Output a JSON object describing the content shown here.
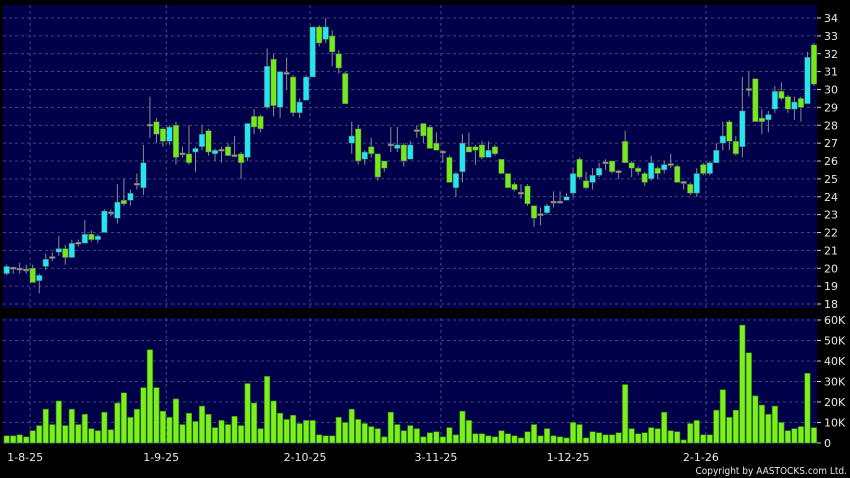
{
  "chart_data": [
    {
      "type": "candlestick",
      "panel": "price",
      "ylim": [
        18,
        34
      ],
      "yticks": [
        18,
        19,
        20,
        21,
        22,
        23,
        24,
        25,
        26,
        27,
        28,
        29,
        30,
        31,
        32,
        33,
        34
      ],
      "grid": true,
      "colors": {
        "up": "#22e6f2",
        "down": "#72ea1c",
        "flat": "#9a9a9a",
        "wick": "#8c8c8c",
        "background": "#00004a",
        "grid": "#5a5a8a"
      },
      "ohlc": [
        [
          19.7,
          20.2,
          19.6,
          20.1
        ],
        [
          20.0,
          20.1,
          19.7,
          20.0
        ],
        [
          19.95,
          20.3,
          19.7,
          19.95
        ],
        [
          19.9,
          20.2,
          19.7,
          19.9
        ],
        [
          20.0,
          20.2,
          19.2,
          19.2
        ],
        [
          19.3,
          19.7,
          18.6,
          19.6
        ],
        [
          20.1,
          20.8,
          19.9,
          20.5
        ],
        [
          20.6,
          20.9,
          20.4,
          20.6
        ],
        [
          20.9,
          21.8,
          20.7,
          21.1
        ],
        [
          21.1,
          21.3,
          20.2,
          20.6
        ],
        [
          20.6,
          21.6,
          20.6,
          21.4
        ],
        [
          21.4,
          21.6,
          21.2,
          21.4
        ],
        [
          21.4,
          22.7,
          21.4,
          21.9
        ],
        [
          21.9,
          22.1,
          21.5,
          21.6
        ],
        [
          21.6,
          21.9,
          21.4,
          21.8
        ],
        [
          22.0,
          23.3,
          22.0,
          23.2
        ],
        [
          23.1,
          23.3,
          22.9,
          23.1
        ],
        [
          22.8,
          24.7,
          22.5,
          23.7
        ],
        [
          23.8,
          25.0,
          23.5,
          23.6
        ],
        [
          23.8,
          24.4,
          23.5,
          24.2
        ],
        [
          24.7,
          25.3,
          24.4,
          24.7
        ],
        [
          24.5,
          26.9,
          24.1,
          25.9
        ],
        [
          28.0,
          29.6,
          27.3,
          28.0
        ],
        [
          28.2,
          28.4,
          27.0,
          27.5
        ],
        [
          27.8,
          27.9,
          26.8,
          27.1
        ],
        [
          27.1,
          28.0,
          26.9,
          27.9
        ],
        [
          28.0,
          28.2,
          25.8,
          26.2
        ],
        [
          26.4,
          26.8,
          26.2,
          26.4
        ],
        [
          26.4,
          28.0,
          25.8,
          25.9
        ],
        [
          26.5,
          26.8,
          25.4,
          26.7
        ],
        [
          26.8,
          28.0,
          26.6,
          27.5
        ],
        [
          27.7,
          27.8,
          26.3,
          26.5
        ],
        [
          26.4,
          26.7,
          26.0,
          26.6
        ],
        [
          26.6,
          26.8,
          25.9,
          26.6
        ],
        [
          26.8,
          27.0,
          26.3,
          26.3
        ],
        [
          26.3,
          27.4,
          26.2,
          26.3
        ],
        [
          26.4,
          26.5,
          25.0,
          25.9
        ],
        [
          26.2,
          28.1,
          26.0,
          28.1
        ],
        [
          28.5,
          28.9,
          27.5,
          27.9
        ],
        [
          28.5,
          28.6,
          27.6,
          27.8
        ],
        [
          29.0,
          32.3,
          28.9,
          31.3
        ],
        [
          31.7,
          32.0,
          28.5,
          29.1
        ],
        [
          29.0,
          31.0,
          28.4,
          31.0
        ],
        [
          30.9,
          31.8,
          30.0,
          30.9
        ],
        [
          30.7,
          30.8,
          28.5,
          28.7
        ],
        [
          28.7,
          29.5,
          28.4,
          29.3
        ],
        [
          29.4,
          30.8,
          29.4,
          30.7
        ],
        [
          30.7,
          33.5,
          30.7,
          33.5
        ],
        [
          33.5,
          33.6,
          32.4,
          32.6
        ],
        [
          32.8,
          34.0,
          32.6,
          33.5
        ],
        [
          33.0,
          33.3,
          31.3,
          32.1
        ],
        [
          32.0,
          32.2,
          30.9,
          31.2
        ],
        [
          30.9,
          31.0,
          29.2,
          29.2
        ],
        [
          27.0,
          28.2,
          26.4,
          27.4
        ],
        [
          27.8,
          28.0,
          25.8,
          26.0
        ],
        [
          26.1,
          26.6,
          25.8,
          26.5
        ],
        [
          26.8,
          27.3,
          26.2,
          26.4
        ],
        [
          26.4,
          26.4,
          24.9,
          25.1
        ],
        [
          26.0,
          26.0,
          25.4,
          25.6
        ],
        [
          26.9,
          27.9,
          26.5,
          26.9
        ],
        [
          26.7,
          27.9,
          26.5,
          26.9
        ],
        [
          26.9,
          27.0,
          25.7,
          26.0
        ],
        [
          26.1,
          27.1,
          26.1,
          26.9
        ],
        [
          27.7,
          28.0,
          27.3,
          27.7
        ],
        [
          28.1,
          28.1,
          27.0,
          27.4
        ],
        [
          27.9,
          28.0,
          26.7,
          26.7
        ],
        [
          27.0,
          27.6,
          26.6,
          26.6
        ],
        [
          26.5,
          26.6,
          25.9,
          26.5
        ],
        [
          26.2,
          26.3,
          24.8,
          24.8
        ],
        [
          24.5,
          25.4,
          24.0,
          25.3
        ],
        [
          25.4,
          27.5,
          24.8,
          27.0
        ],
        [
          26.8,
          27.6,
          26.5,
          26.5
        ],
        [
          26.8,
          26.9,
          25.8,
          26.6
        ],
        [
          26.9,
          27.1,
          26.1,
          26.2
        ],
        [
          26.2,
          27.1,
          26.2,
          26.6
        ],
        [
          26.8,
          26.9,
          26.3,
          26.4
        ],
        [
          26.1,
          26.1,
          25.3,
          25.3
        ],
        [
          25.3,
          25.3,
          24.5,
          24.5
        ],
        [
          24.7,
          24.8,
          24.3,
          24.4
        ],
        [
          24.2,
          24.7,
          23.9,
          24.2
        ],
        [
          24.6,
          24.7,
          23.5,
          23.6
        ],
        [
          23.5,
          23.5,
          22.3,
          22.8
        ],
        [
          23.0,
          23.4,
          22.4,
          23.0
        ],
        [
          23.1,
          23.6,
          23.0,
          23.5
        ],
        [
          23.7,
          24.3,
          23.4,
          23.7
        ],
        [
          23.7,
          24.3,
          23.6,
          23.7
        ],
        [
          23.8,
          24.2,
          23.8,
          24.0
        ],
        [
          24.2,
          25.6,
          24.0,
          25.3
        ],
        [
          26.1,
          26.2,
          25.0,
          25.1
        ],
        [
          24.9,
          25.4,
          24.4,
          24.5
        ],
        [
          24.8,
          25.6,
          24.4,
          25.2
        ],
        [
          25.2,
          25.9,
          25.1,
          25.6
        ],
        [
          25.9,
          26.1,
          25.5,
          25.9
        ],
        [
          26.0,
          26.0,
          25.3,
          25.4
        ],
        [
          25.4,
          25.5,
          25.0,
          25.4
        ],
        [
          27.1,
          27.7,
          25.9,
          25.9
        ],
        [
          25.9,
          26.0,
          25.1,
          25.6
        ],
        [
          25.6,
          25.7,
          25.2,
          25.4
        ],
        [
          25.3,
          25.4,
          24.6,
          24.8
        ],
        [
          25.0,
          26.3,
          24.9,
          25.9
        ],
        [
          25.6,
          25.7,
          25.0,
          25.3
        ],
        [
          25.5,
          26.0,
          25.3,
          25.8
        ],
        [
          25.8,
          26.4,
          25.6,
          25.8
        ],
        [
          25.7,
          25.8,
          24.8,
          24.8
        ],
        [
          24.8,
          24.9,
          24.4,
          24.8
        ],
        [
          24.7,
          24.8,
          24.1,
          24.2
        ],
        [
          24.2,
          25.6,
          24.0,
          25.3
        ],
        [
          25.8,
          25.9,
          25.2,
          25.3
        ],
        [
          25.3,
          26.0,
          25.2,
          25.9
        ],
        [
          25.9,
          27.0,
          25.9,
          26.6
        ],
        [
          27.0,
          28.2,
          26.6,
          27.4
        ],
        [
          28.2,
          28.3,
          26.6,
          27.1
        ],
        [
          27.1,
          27.4,
          26.3,
          26.4
        ],
        [
          26.8,
          30.7,
          26.2,
          28.8
        ],
        [
          30.0,
          31.0,
          29.6,
          30.0
        ],
        [
          30.6,
          30.6,
          28.2,
          28.2
        ],
        [
          28.4,
          28.9,
          27.5,
          28.2
        ],
        [
          28.3,
          28.8,
          27.6,
          28.6
        ],
        [
          28.9,
          30.2,
          28.7,
          29.9
        ],
        [
          29.9,
          30.4,
          29.4,
          29.5
        ],
        [
          29.6,
          29.7,
          28.7,
          28.9
        ],
        [
          28.9,
          29.6,
          28.3,
          29.3
        ],
        [
          29.5,
          29.6,
          28.2,
          29.0
        ],
        [
          29.2,
          32.1,
          29.2,
          31.8
        ],
        [
          32.5,
          32.6,
          30.2,
          30.3
        ]
      ]
    },
    {
      "type": "bar",
      "panel": "volume",
      "ylim": [
        0,
        60000
      ],
      "ytick_labels": [
        "0",
        "10K",
        "20K",
        "30K",
        "40K",
        "50K",
        "60K"
      ],
      "grid": true,
      "colors": {
        "bar": "#7cf01c",
        "bar_edge": "#3a8a08"
      },
      "values_k": [
        3.5,
        3.5,
        4,
        3,
        6,
        8.5,
        16.5,
        9,
        20.5,
        8.5,
        16.5,
        9,
        14,
        7,
        6,
        15,
        6.5,
        19.5,
        24.5,
        12.5,
        16.5,
        27,
        45.5,
        27,
        15.5,
        12.5,
        21.5,
        9,
        14.5,
        10.5,
        18,
        14,
        7.5,
        11,
        9,
        13,
        8.5,
        29,
        19.5,
        7,
        32.5,
        20.5,
        14.5,
        11.5,
        13.5,
        9.5,
        11,
        11,
        4,
        3.5,
        3.5,
        12.5,
        10,
        16.5,
        11.5,
        9.5,
        8,
        7,
        3,
        15,
        9,
        6,
        8.5,
        7,
        3,
        5,
        5.5,
        3,
        7.5,
        4,
        15.5,
        11,
        4.5,
        4.5,
        3.5,
        3,
        6,
        4.5,
        3.5,
        2.5,
        5.5,
        9,
        3.5,
        7,
        3.5,
        3,
        2.5,
        10,
        9,
        2.5,
        5.5,
        5,
        4,
        4,
        5,
        28.5,
        7,
        4.5,
        5,
        7.5,
        7,
        15,
        6,
        5.5,
        1.5,
        9.5,
        11,
        4,
        4,
        16,
        26,
        12.5,
        16,
        57.5,
        44,
        23,
        18.5,
        14,
        18,
        10,
        6,
        7,
        8,
        34,
        7.5
      ]
    }
  ],
  "x_axis": {
    "labels": [
      "1-8-25",
      "1-9-25",
      "2-10-25",
      "3-11-25",
      "1-12-25",
      "2-1-26"
    ]
  },
  "copyright": "Copyright by AASTOCKS.com Ltd."
}
